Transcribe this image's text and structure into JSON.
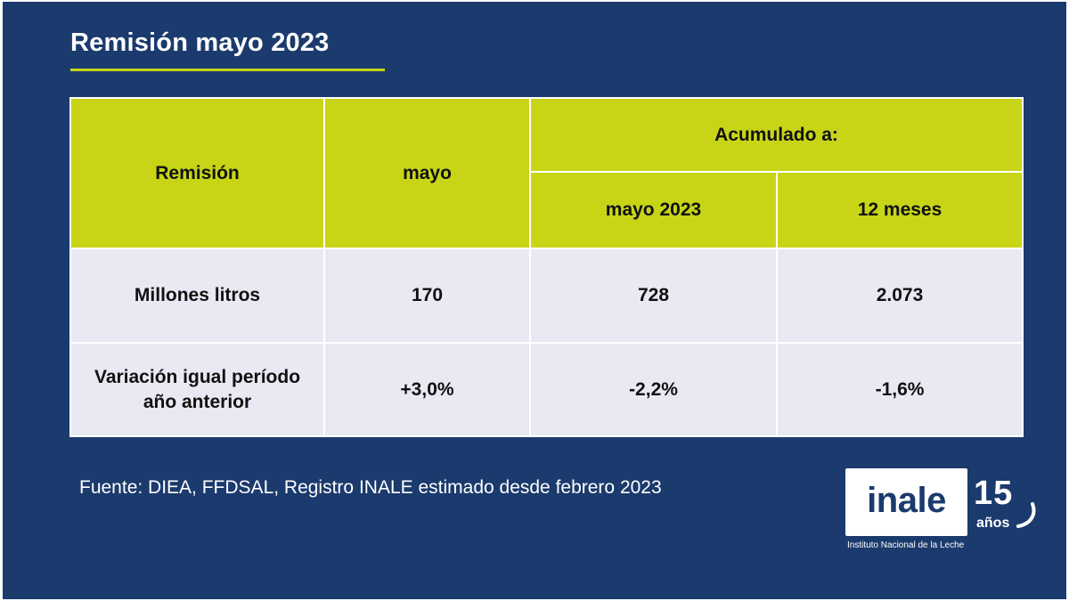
{
  "title": "Remisión mayo 2023",
  "table": {
    "header": {
      "remision": "Remisión",
      "mayo": "mayo",
      "acumulado": "Acumulado a:",
      "acum_mayo": "mayo 2023",
      "acum_12": "12 meses"
    },
    "rows": [
      {
        "label": "Millones litros",
        "mayo": "170",
        "acum_mayo": "728",
        "acum_12": "2.073"
      },
      {
        "label": "Variación igual período año anterior",
        "mayo": "+3,0%",
        "acum_mayo": "-2,2%",
        "acum_12": "-1,6%"
      }
    ]
  },
  "source": "Fuente: DIEA, FFDSAL, Registro INALE estimado desde febrero 2023",
  "logo": {
    "word": "inale",
    "anniversary_number": "15",
    "anniversary_word": "años",
    "caption": "Instituto Nacional de la Leche"
  },
  "colors": {
    "background": "#1b3a6d",
    "accent": "#c8d516",
    "table_body": "#e8e9f3"
  }
}
